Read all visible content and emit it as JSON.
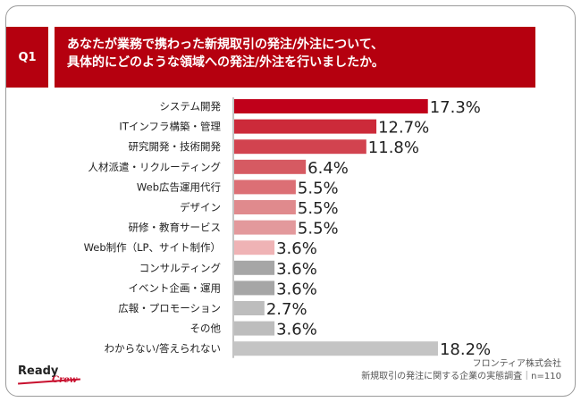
{
  "header": {
    "badge": "Q1",
    "question_line1": "あなたが業務で携わった新規取引の発注/外注について、",
    "question_line2": "具体的にどのような領域への発注/外注を行いましたか。"
  },
  "chart_data": {
    "type": "bar",
    "orientation": "horizontal",
    "categories": [
      "システム開発",
      "ITインフラ構築・管理",
      "研究開発・技術開発",
      "人材派遣・リクルーティング",
      "Web広告運用代行",
      "デザイン",
      "研修・教育サービス",
      "Web制作（LP、サイト制作）",
      "コンサルティング",
      "イベント企画・運用",
      "広報・プロモーション",
      "その他",
      "わからない/答えられない"
    ],
    "values": [
      17.3,
      12.7,
      11.8,
      6.4,
      5.5,
      5.5,
      5.5,
      3.6,
      3.6,
      3.6,
      2.7,
      3.6,
      18.2
    ],
    "value_labels": [
      "17.3%",
      "12.7%",
      "11.8%",
      "6.4%",
      "5.5%",
      "5.5%",
      "5.5%",
      "3.6%",
      "3.6%",
      "3.6%",
      "2.7%",
      "3.6%",
      "18.2%"
    ],
    "colors": [
      "#c0001a",
      "#cc2a3a",
      "#d2434f",
      "#d65a62",
      "#dc6f75",
      "#e08a8d",
      "#e3999c",
      "#efb3b5",
      "#a6a6a6",
      "#a6a6a6",
      "#bdbdbd",
      "#bdbdbd",
      "#c4c4c4"
    ],
    "xlim": [
      0,
      20
    ]
  },
  "footer": {
    "company": "フロンティア株式会社",
    "survey": "新規取引の発注に関する企業の実態調査｜n=110"
  },
  "logo": {
    "text": "Ready",
    "script": "Crew"
  }
}
